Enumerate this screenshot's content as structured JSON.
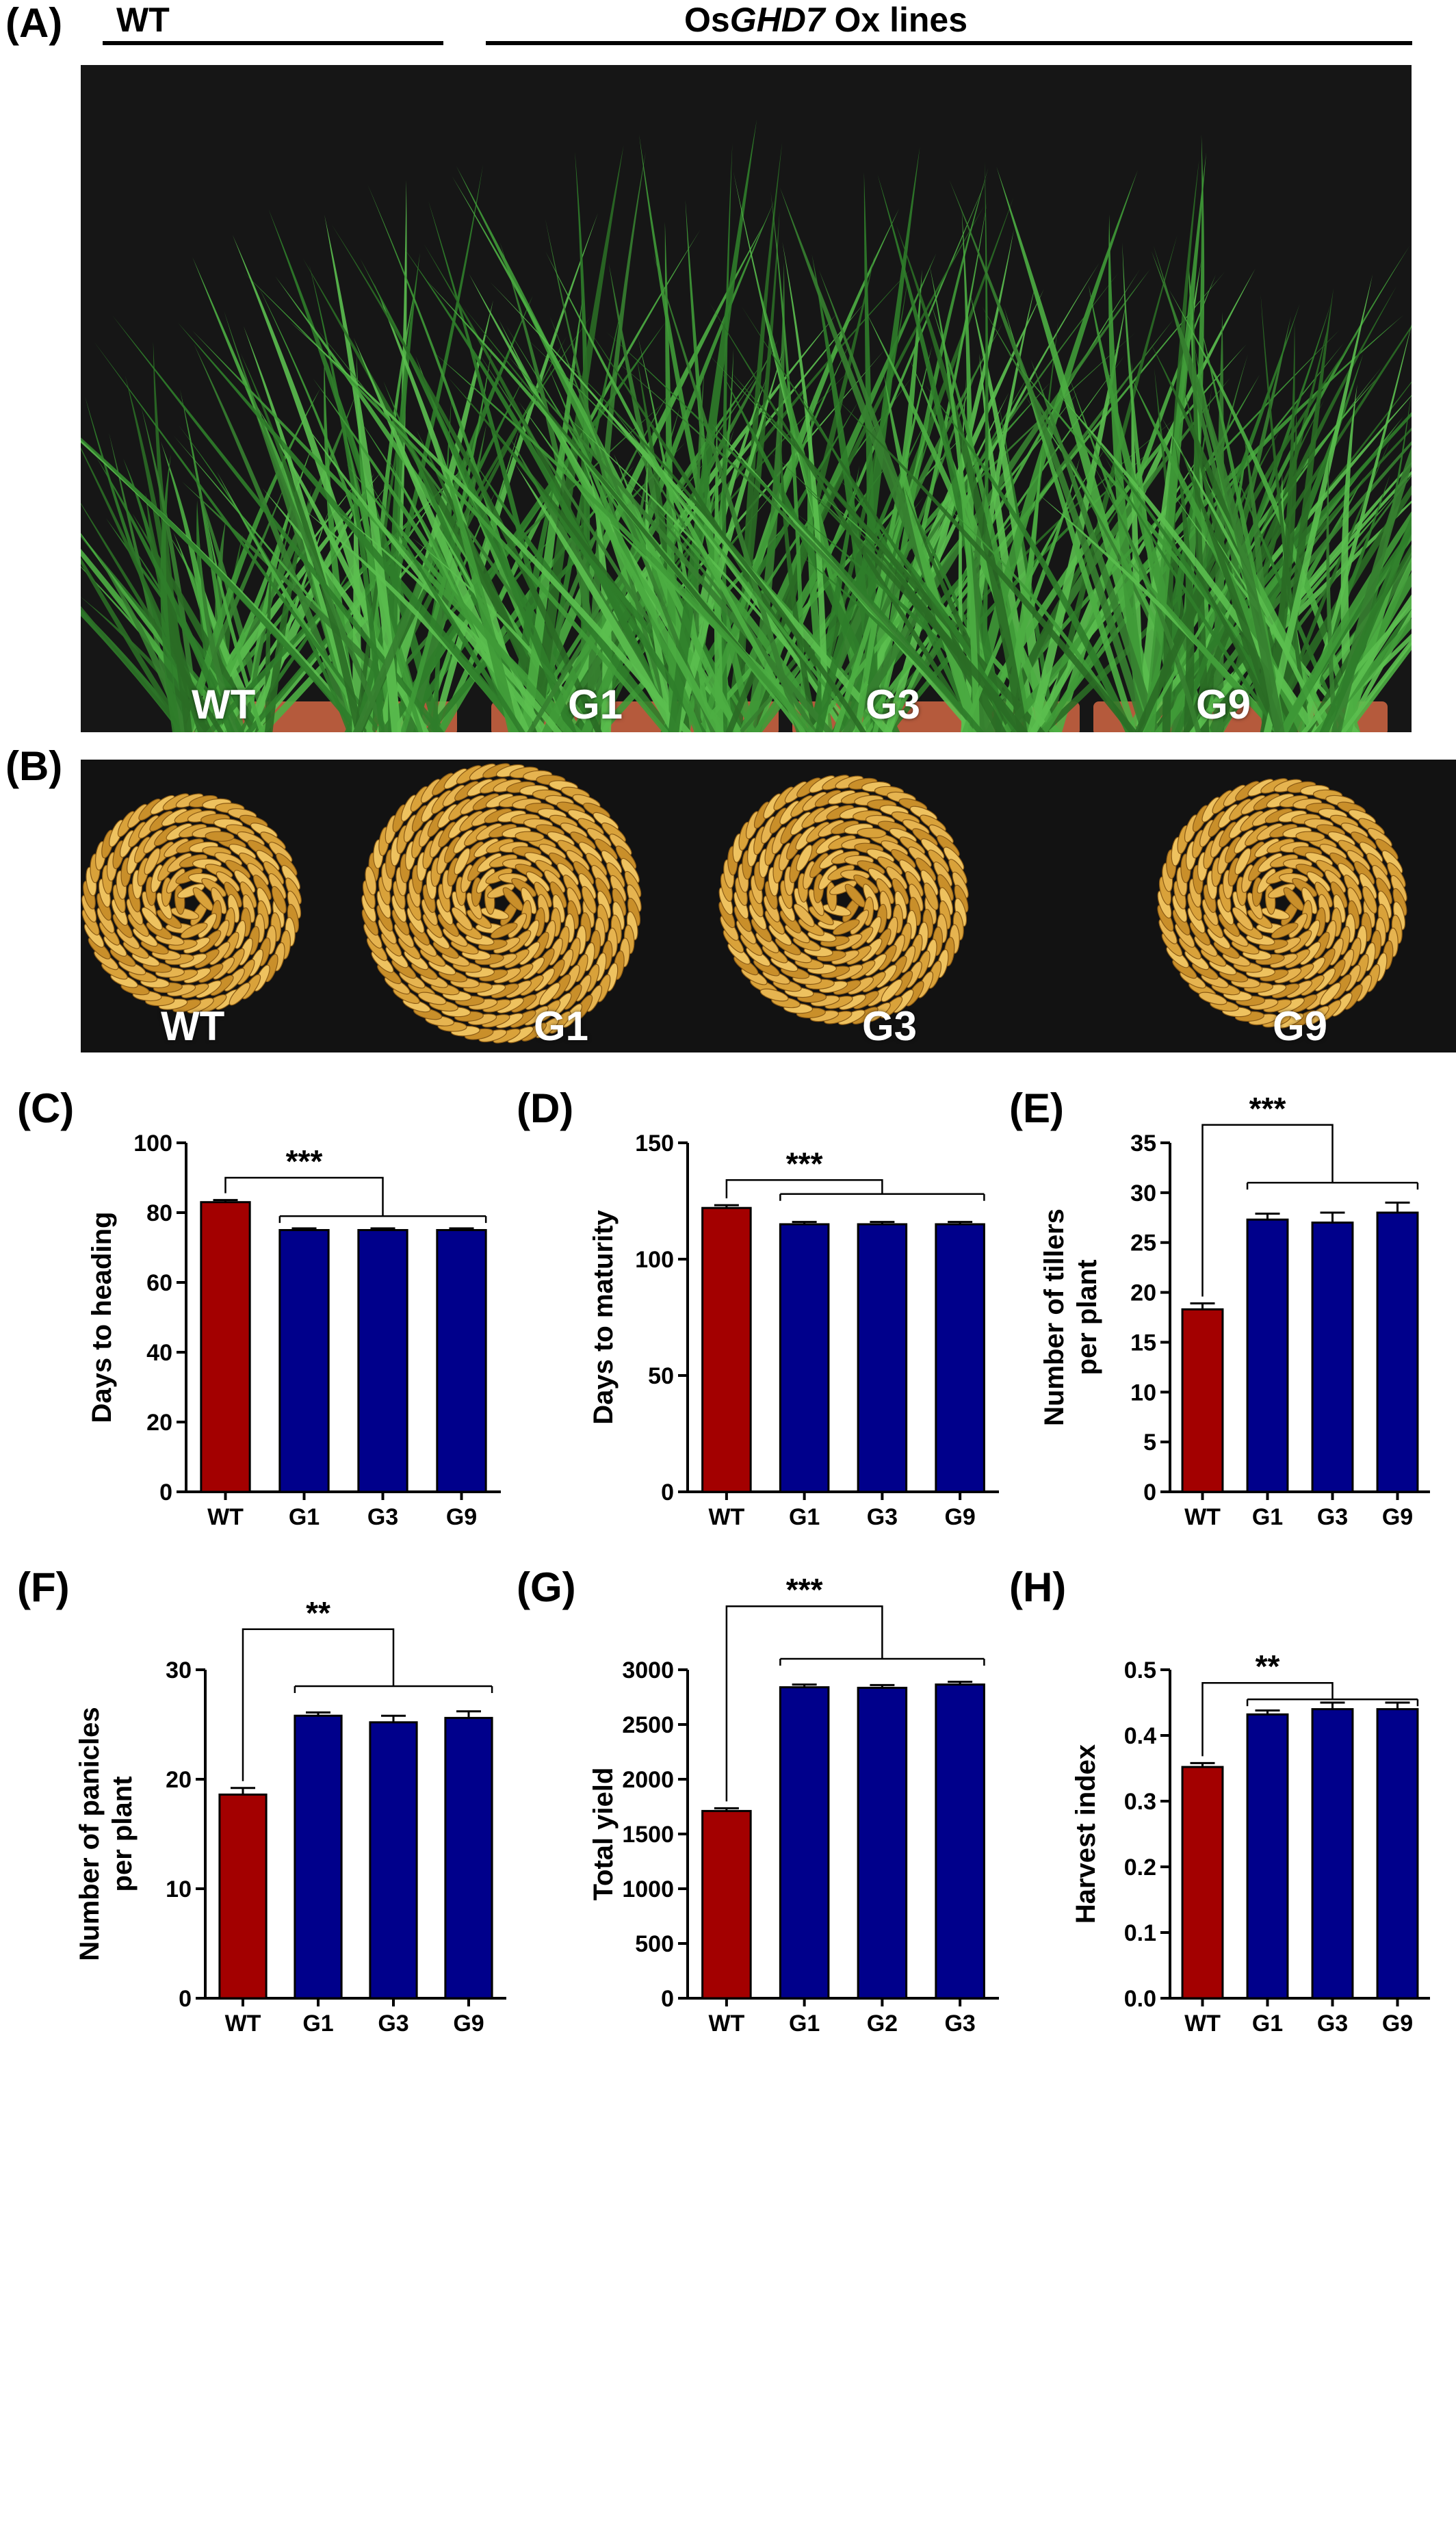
{
  "header": {
    "wt_label": "WT",
    "ox_label_prefix": "Os",
    "ox_label_italic": "GHD7",
    "ox_label_suffix": " Ox lines"
  },
  "panels": {
    "A": "(A)",
    "B": "(B)",
    "C": "(C)",
    "D": "(D)",
    "E": "(E)",
    "F": "(F)",
    "G": "(G)",
    "H": "(H)"
  },
  "photo_plants": {
    "labels": [
      "WT",
      "G1",
      "G3",
      "G9"
    ]
  },
  "photo_grains": {
    "labels": [
      "WT",
      "G1",
      "G3",
      "G9"
    ]
  },
  "colors": {
    "wt": "#a30000",
    "ox": "#00008b",
    "axis": "#000000",
    "plant_bg": "#141414"
  },
  "icons": [
    "rice-plant-icon",
    "rice-grain-icon"
  ],
  "chart_data": [
    {
      "id": "C",
      "type": "bar",
      "ylabel": "Days to heading",
      "categories": [
        "WT",
        "G1",
        "G3",
        "G9"
      ],
      "values": [
        83,
        75,
        75,
        75
      ],
      "errors": [
        0.6,
        0.5,
        0.5,
        0.5
      ],
      "ylim": [
        0,
        100
      ],
      "yticks": [
        0,
        20,
        40,
        60,
        80,
        100
      ],
      "significance": "***",
      "bracket": "over-group",
      "bracket_y": 90,
      "group_line_y": 79
    },
    {
      "id": "D",
      "type": "bar",
      "ylabel": "Days to maturity",
      "categories": [
        "WT",
        "G1",
        "G3",
        "G9"
      ],
      "values": [
        122,
        115,
        115,
        115
      ],
      "errors": [
        1.2,
        1.0,
        1.0,
        1.0
      ],
      "ylim": [
        0,
        150
      ],
      "yticks": [
        0,
        50,
        100,
        150
      ],
      "significance": "***",
      "bracket": "over-group",
      "bracket_y": 134,
      "group_line_y": 128
    },
    {
      "id": "E",
      "type": "bar",
      "ylabel": "Number of tillers per plant",
      "ylabel_lines": [
        "Number of tillers",
        "per plant"
      ],
      "categories": [
        "WT",
        "G1",
        "G3",
        "G9"
      ],
      "values": [
        18.3,
        27.3,
        27,
        28
      ],
      "errors": [
        0.6,
        0.6,
        1.0,
        1.0
      ],
      "ylim": [
        0,
        35
      ],
      "yticks": [
        0,
        5,
        10,
        15,
        20,
        25,
        30,
        35
      ],
      "significance": "***",
      "bracket": "top",
      "bracket_y": 36.8,
      "group_line_y": 31
    },
    {
      "id": "F",
      "type": "bar",
      "ylabel": "Number of panicles per plant",
      "ylabel_lines": [
        "Number of panicles",
        "per plant"
      ],
      "categories": [
        "WT",
        "G1",
        "G3",
        "G9"
      ],
      "values": [
        18.6,
        25.8,
        25.2,
        25.6
      ],
      "errors": [
        0.6,
        0.3,
        0.6,
        0.6
      ],
      "ylim": [
        0,
        30
      ],
      "yticks": [
        0,
        10,
        20,
        30
      ],
      "significance": "**",
      "bracket": "top",
      "bracket_y": 33.7,
      "group_line_y": 28.5
    },
    {
      "id": "G",
      "type": "bar",
      "ylabel": "Total yield",
      "categories": [
        "WT",
        "G1",
        "G2",
        "G3"
      ],
      "values": [
        1710,
        2840,
        2835,
        2865
      ],
      "errors": [
        25,
        25,
        25,
        25
      ],
      "ylim": [
        0,
        3000
      ],
      "yticks": [
        0,
        500,
        1000,
        1500,
        2000,
        2500,
        3000
      ],
      "significance": "***",
      "bracket": "top",
      "bracket_y": 3580,
      "group_line_y": 3100
    },
    {
      "id": "H",
      "type": "bar",
      "ylabel": "Harvest index",
      "categories": [
        "WT",
        "G1",
        "G3",
        "G9"
      ],
      "values": [
        0.352,
        0.432,
        0.44,
        0.44
      ],
      "errors": [
        0.006,
        0.006,
        0.01,
        0.01
      ],
      "ylim": [
        0,
        0.5
      ],
      "yticks": [
        "0.0",
        "0.1",
        "0.2",
        "0.3",
        "0.4",
        "0.5"
      ],
      "significance": "**",
      "bracket": "top-partial",
      "bracket_y": 0.48,
      "group_line_y": 0.455
    }
  ]
}
